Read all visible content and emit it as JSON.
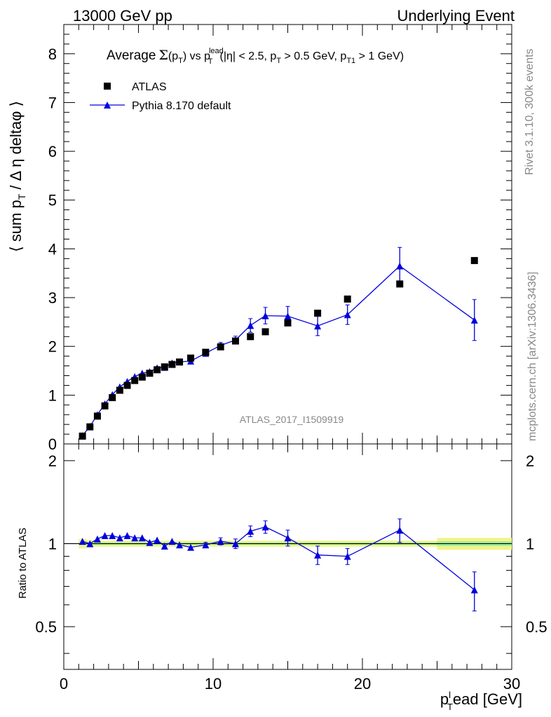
{
  "header": {
    "left": "13000 GeV pp",
    "right": "Underlying Event"
  },
  "side_labels": {
    "rivet": "Rivet 3.1.10,  300k events",
    "mcplots": "mcplots.cern.ch [arXiv:1306.3436]"
  },
  "chart_data": [
    {
      "type": "scatter",
      "panel": "main",
      "title": "Average Σ(pT) vs pT^lead (|η| < 2.5, pT > 0.5 GeV, pT1 > 1 GeV)",
      "title_parts": {
        "prefix": "Average",
        "sigma": "Σ",
        "p": "p",
        "t": "T",
        "lead": "lead",
        "cond1": "(|η| < 2.5, p",
        "cond2": " > 0.5 GeV, p",
        "t1": "T1",
        "cond3": " > 1 GeV)",
        "vs": " vs ",
        "open": "(",
        "close": ")"
      },
      "ylabel_parts": {
        "a": "⟨ sum p",
        "sub": "T",
        "b": " / Δ η deltaφ ⟩"
      },
      "xlabel_parts": {
        "p": "p",
        "sup": "l",
        "sub": "T",
        "rest": "ead [GeV]"
      },
      "watermark": "ATLAS_2017_I1509919",
      "xlim": [
        0,
        30
      ],
      "ylim": [
        0,
        8.6
      ],
      "xticks": [
        0,
        10,
        20,
        30
      ],
      "yticks": [
        0,
        1,
        2,
        3,
        4,
        5,
        6,
        7,
        8
      ],
      "legend": [
        {
          "label": "ATLAS",
          "marker": "square",
          "color": "#000000"
        },
        {
          "label": "Pythia 8.170 default",
          "marker": "triangle",
          "color": "#0000dd"
        }
      ],
      "series": [
        {
          "name": "ATLAS",
          "x": [
            1.25,
            1.75,
            2.25,
            2.75,
            3.25,
            3.75,
            4.25,
            4.75,
            5.25,
            5.75,
            6.25,
            6.75,
            7.25,
            7.75,
            8.5,
            9.5,
            10.5,
            11.5,
            12.5,
            13.5,
            15,
            17,
            19,
            22.5,
            27.5
          ],
          "y": [
            0.16,
            0.35,
            0.57,
            0.78,
            0.95,
            1.1,
            1.2,
            1.3,
            1.37,
            1.45,
            1.52,
            1.58,
            1.63,
            1.68,
            1.76,
            1.88,
            1.99,
            2.11,
            2.2,
            2.3,
            2.48,
            2.68,
            2.97,
            3.28,
            3.76
          ]
        },
        {
          "name": "Pythia 8.170 default",
          "x": [
            1.25,
            1.75,
            2.25,
            2.75,
            3.25,
            3.75,
            4.25,
            4.75,
            5.25,
            5.75,
            6.25,
            6.75,
            7.25,
            7.75,
            8.5,
            9.5,
            10.5,
            11.5,
            12.5,
            13.5,
            15,
            17,
            19,
            22.5,
            27.5
          ],
          "y": [
            0.17,
            0.36,
            0.6,
            0.82,
            1.01,
            1.17,
            1.28,
            1.38,
            1.45,
            1.48,
            1.56,
            1.57,
            1.66,
            1.68,
            1.7,
            1.86,
            2.02,
            2.13,
            2.43,
            2.63,
            2.62,
            2.42,
            2.65,
            3.65,
            2.54
          ],
          "yerr": [
            0,
            0,
            0,
            0,
            0,
            0,
            0,
            0,
            0,
            0,
            0,
            0,
            0,
            0,
            0,
            0.04,
            0.06,
            0.08,
            0.14,
            0.17,
            0.2,
            0.2,
            0.2,
            0.38,
            0.42
          ]
        }
      ]
    },
    {
      "type": "scatter",
      "panel": "ratio",
      "ylabel": "Ratio to ATLAS",
      "xlim": [
        0,
        30
      ],
      "ylim": [
        0.35,
        2.3
      ],
      "yticks": [
        0.5,
        1,
        2
      ],
      "ytick_labels": [
        "0.5",
        "1",
        "2"
      ],
      "xticks": [
        0,
        10,
        20,
        30
      ],
      "xtick_labels": [
        "0",
        "10",
        "20",
        "30"
      ],
      "band": {
        "x_edges": [
          1,
          1.5,
          2,
          2.5,
          3,
          3.5,
          4,
          4.5,
          5,
          5.5,
          6,
          6.5,
          7,
          7.5,
          8,
          9,
          10,
          11,
          12,
          13,
          14,
          16,
          18,
          20,
          25,
          30
        ],
        "stat": [
          0.01,
          0.01,
          0.01,
          0.01,
          0.01,
          0.01,
          0.01,
          0.01,
          0.01,
          0.01,
          0.01,
          0.01,
          0.01,
          0.01,
          0.01,
          0.01,
          0.01,
          0.01,
          0.01,
          0.01,
          0.01,
          0.01,
          0.01,
          0.01,
          0.02
        ],
        "total": [
          0.04,
          0.03,
          0.025,
          0.025,
          0.025,
          0.025,
          0.025,
          0.025,
          0.025,
          0.025,
          0.025,
          0.025,
          0.025,
          0.025,
          0.025,
          0.025,
          0.025,
          0.025,
          0.025,
          0.025,
          0.025,
          0.025,
          0.025,
          0.025,
          0.05
        ]
      },
      "series": [
        {
          "name": "Pythia 8.170 default",
          "x": [
            1.25,
            1.75,
            2.25,
            2.75,
            3.25,
            3.75,
            4.25,
            4.75,
            5.25,
            5.75,
            6.25,
            6.75,
            7.25,
            7.75,
            8.5,
            9.5,
            10.5,
            11.5,
            12.5,
            13.5,
            15,
            17,
            19,
            22.5,
            27.5
          ],
          "y": [
            1.02,
            1.0,
            1.04,
            1.07,
            1.07,
            1.05,
            1.07,
            1.05,
            1.05,
            1.01,
            1.03,
            0.98,
            1.02,
            0.99,
            0.97,
            0.99,
            1.02,
            1.0,
            1.11,
            1.15,
            1.05,
            0.91,
            0.9,
            1.12,
            0.68
          ],
          "yerr": [
            0,
            0,
            0,
            0,
            0,
            0,
            0,
            0,
            0,
            0,
            0,
            0,
            0,
            0,
            0,
            0.02,
            0.03,
            0.04,
            0.05,
            0.06,
            0.07,
            0.07,
            0.06,
            0.11,
            0.11
          ]
        }
      ]
    }
  ]
}
